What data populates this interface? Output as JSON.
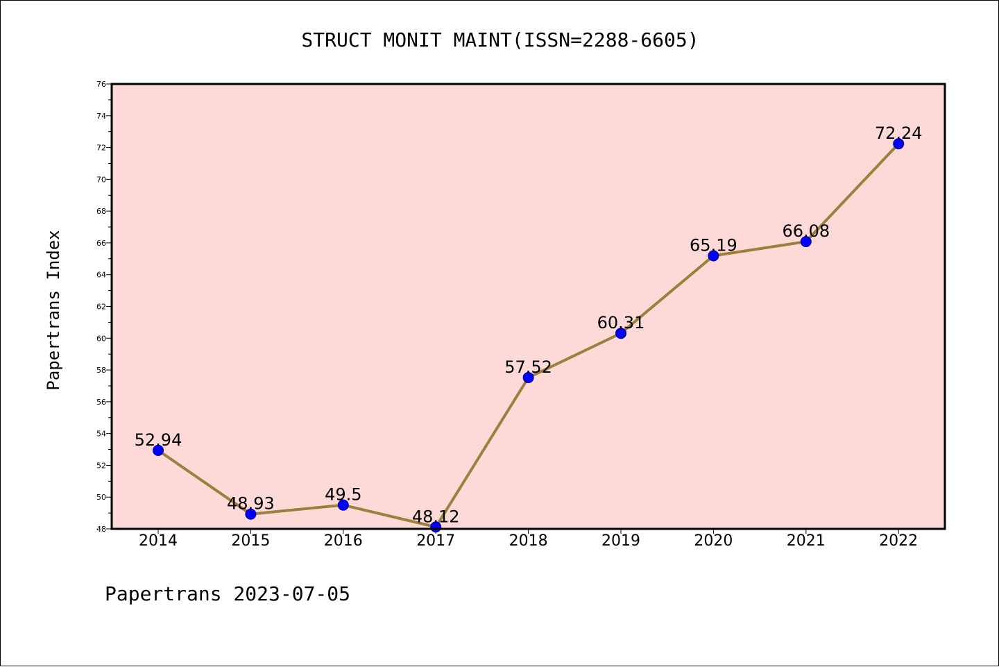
{
  "chart_data": {
    "type": "line",
    "title": "STRUCT MONIT MAINT(ISSN=2288-6605)",
    "xlabel": "",
    "ylabel": "Papertrans Index",
    "categories": [
      "2014",
      "2015",
      "2016",
      "2017",
      "2018",
      "2019",
      "2020",
      "2021",
      "2022"
    ],
    "values": [
      52.94,
      48.93,
      49.5,
      48.12,
      57.52,
      60.31,
      65.19,
      66.08,
      72.24
    ],
    "data_labels": [
      "52.94",
      "48.93",
      "49.5",
      "48.12",
      "57.52",
      "60.31",
      "65.19",
      "66.08",
      "72.24"
    ],
    "ylim": [
      48,
      76
    ],
    "yticks": [
      "48",
      "50",
      "52",
      "54",
      "56",
      "58",
      "60",
      "62",
      "64",
      "66",
      "68",
      "70",
      "72",
      "74",
      "76"
    ],
    "grid": false,
    "legend": "none",
    "colors": {
      "plot_background": "#fddad7",
      "line": "#9c813e",
      "marker": "#0000ff",
      "axes": "#000000"
    }
  },
  "footer": {
    "text": "Papertrans 2023-07-05"
  }
}
